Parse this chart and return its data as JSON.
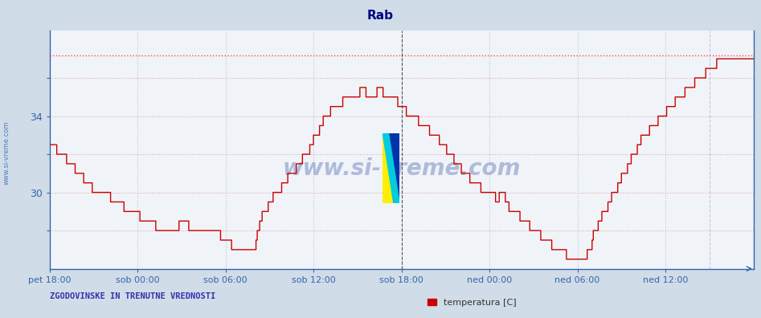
{
  "title": "Rab",
  "title_color": "#000080",
  "bg_color": "#d0dce8",
  "plot_bg_color": "#f0f4f8",
  "xlabel_ticks": [
    "pet 18:00",
    "sob 00:00",
    "sob 06:00",
    "sob 12:00",
    "sob 18:00",
    "ned 00:00",
    "ned 06:00",
    "ned 12:00"
  ],
  "ytick_labels": [
    "",
    "30",
    "",
    "34",
    ""
  ],
  "ytick_values": [
    28,
    30,
    32,
    34,
    36
  ],
  "ylim": [
    26.0,
    38.5
  ],
  "xlim": [
    0,
    576
  ],
  "footer_left": "ZGODOVINSKE IN TRENUTNE VREDNOSTI",
  "legend_label": "temperatura [C]",
  "line_color": "#cc0000",
  "grid_color": "#b8c8d8",
  "dot_line_color": "#ff4444",
  "vline_color": "#000000",
  "watermark_text": "www.si-vreme.com",
  "watermark_color": "#1a3a9a",
  "x_tick_positions": [
    0,
    72,
    144,
    216,
    288,
    360,
    432,
    504
  ],
  "max_line_y": 37.2,
  "current_x": 288,
  "keypoints": [
    [
      0,
      32.5
    ],
    [
      3,
      32.5
    ],
    [
      6,
      32.2
    ],
    [
      9,
      32.0
    ],
    [
      12,
      31.8
    ],
    [
      18,
      31.5
    ],
    [
      24,
      31.0
    ],
    [
      30,
      30.5
    ],
    [
      36,
      30.2
    ],
    [
      42,
      30.0
    ],
    [
      48,
      29.8
    ],
    [
      54,
      29.5
    ],
    [
      60,
      29.3
    ],
    [
      66,
      29.0
    ],
    [
      72,
      28.8
    ],
    [
      78,
      28.5
    ],
    [
      84,
      28.3
    ],
    [
      90,
      28.2
    ],
    [
      96,
      28.1
    ],
    [
      102,
      28.2
    ],
    [
      108,
      28.3
    ],
    [
      112,
      28.3
    ],
    [
      116,
      28.2
    ],
    [
      120,
      28.1
    ],
    [
      124,
      28.0
    ],
    [
      128,
      28.0
    ],
    [
      132,
      27.9
    ],
    [
      138,
      27.8
    ],
    [
      144,
      27.5
    ],
    [
      150,
      27.2
    ],
    [
      156,
      27.0
    ],
    [
      162,
      26.8
    ],
    [
      168,
      27.0
    ],
    [
      172,
      28.5
    ],
    [
      176,
      29.0
    ],
    [
      180,
      29.5
    ],
    [
      186,
      30.0
    ],
    [
      192,
      30.5
    ],
    [
      198,
      31.0
    ],
    [
      204,
      31.5
    ],
    [
      210,
      32.0
    ],
    [
      214,
      32.5
    ],
    [
      218,
      33.0
    ],
    [
      222,
      33.5
    ],
    [
      226,
      34.0
    ],
    [
      230,
      34.3
    ],
    [
      234,
      34.5
    ],
    [
      238,
      34.7
    ],
    [
      242,
      34.8
    ],
    [
      246,
      34.9
    ],
    [
      250,
      35.1
    ],
    [
      254,
      35.3
    ],
    [
      256,
      35.4
    ],
    [
      258,
      35.3
    ],
    [
      260,
      35.0
    ],
    [
      262,
      34.8
    ],
    [
      264,
      35.0
    ],
    [
      266,
      35.2
    ],
    [
      268,
      35.3
    ],
    [
      270,
      35.4
    ],
    [
      272,
      35.3
    ],
    [
      274,
      35.2
    ],
    [
      276,
      35.1
    ],
    [
      278,
      35.0
    ],
    [
      280,
      34.9
    ],
    [
      284,
      34.8
    ],
    [
      288,
      34.5
    ],
    [
      292,
      34.2
    ],
    [
      296,
      34.0
    ],
    [
      300,
      33.8
    ],
    [
      306,
      33.5
    ],
    [
      312,
      33.2
    ],
    [
      318,
      32.8
    ],
    [
      324,
      32.3
    ],
    [
      330,
      31.8
    ],
    [
      336,
      31.3
    ],
    [
      342,
      30.8
    ],
    [
      348,
      30.5
    ],
    [
      354,
      30.2
    ],
    [
      360,
      30.0
    ],
    [
      364,
      29.8
    ],
    [
      366,
      29.5
    ],
    [
      368,
      29.8
    ],
    [
      370,
      30.0
    ],
    [
      372,
      29.8
    ],
    [
      374,
      29.5
    ],
    [
      376,
      29.2
    ],
    [
      380,
      29.0
    ],
    [
      384,
      28.8
    ],
    [
      388,
      28.5
    ],
    [
      392,
      28.3
    ],
    [
      396,
      28.0
    ],
    [
      400,
      27.8
    ],
    [
      404,
      27.6
    ],
    [
      408,
      27.4
    ],
    [
      412,
      27.2
    ],
    [
      416,
      27.0
    ],
    [
      420,
      26.8
    ],
    [
      424,
      26.7
    ],
    [
      428,
      26.6
    ],
    [
      432,
      26.5
    ],
    [
      436,
      26.5
    ],
    [
      438,
      26.6
    ],
    [
      440,
      26.8
    ],
    [
      442,
      27.0
    ],
    [
      444,
      27.5
    ],
    [
      446,
      28.0
    ],
    [
      450,
      28.5
    ],
    [
      454,
      29.0
    ],
    [
      458,
      29.5
    ],
    [
      462,
      30.0
    ],
    [
      466,
      30.5
    ],
    [
      470,
      31.0
    ],
    [
      474,
      31.5
    ],
    [
      478,
      32.0
    ],
    [
      482,
      32.5
    ],
    [
      486,
      33.0
    ],
    [
      490,
      33.2
    ],
    [
      494,
      33.5
    ],
    [
      498,
      33.8
    ],
    [
      502,
      34.0
    ],
    [
      504,
      34.2
    ],
    [
      508,
      34.5
    ],
    [
      512,
      34.8
    ],
    [
      516,
      35.0
    ],
    [
      520,
      35.3
    ],
    [
      524,
      35.5
    ],
    [
      528,
      35.8
    ],
    [
      532,
      36.0
    ],
    [
      536,
      36.2
    ],
    [
      540,
      36.5
    ],
    [
      544,
      36.7
    ],
    [
      548,
      36.8
    ],
    [
      552,
      36.9
    ],
    [
      556,
      37.0
    ],
    [
      560,
      37.0
    ],
    [
      564,
      37.0
    ],
    [
      568,
      37.0
    ],
    [
      572,
      37.0
    ],
    [
      576,
      37.1
    ]
  ]
}
